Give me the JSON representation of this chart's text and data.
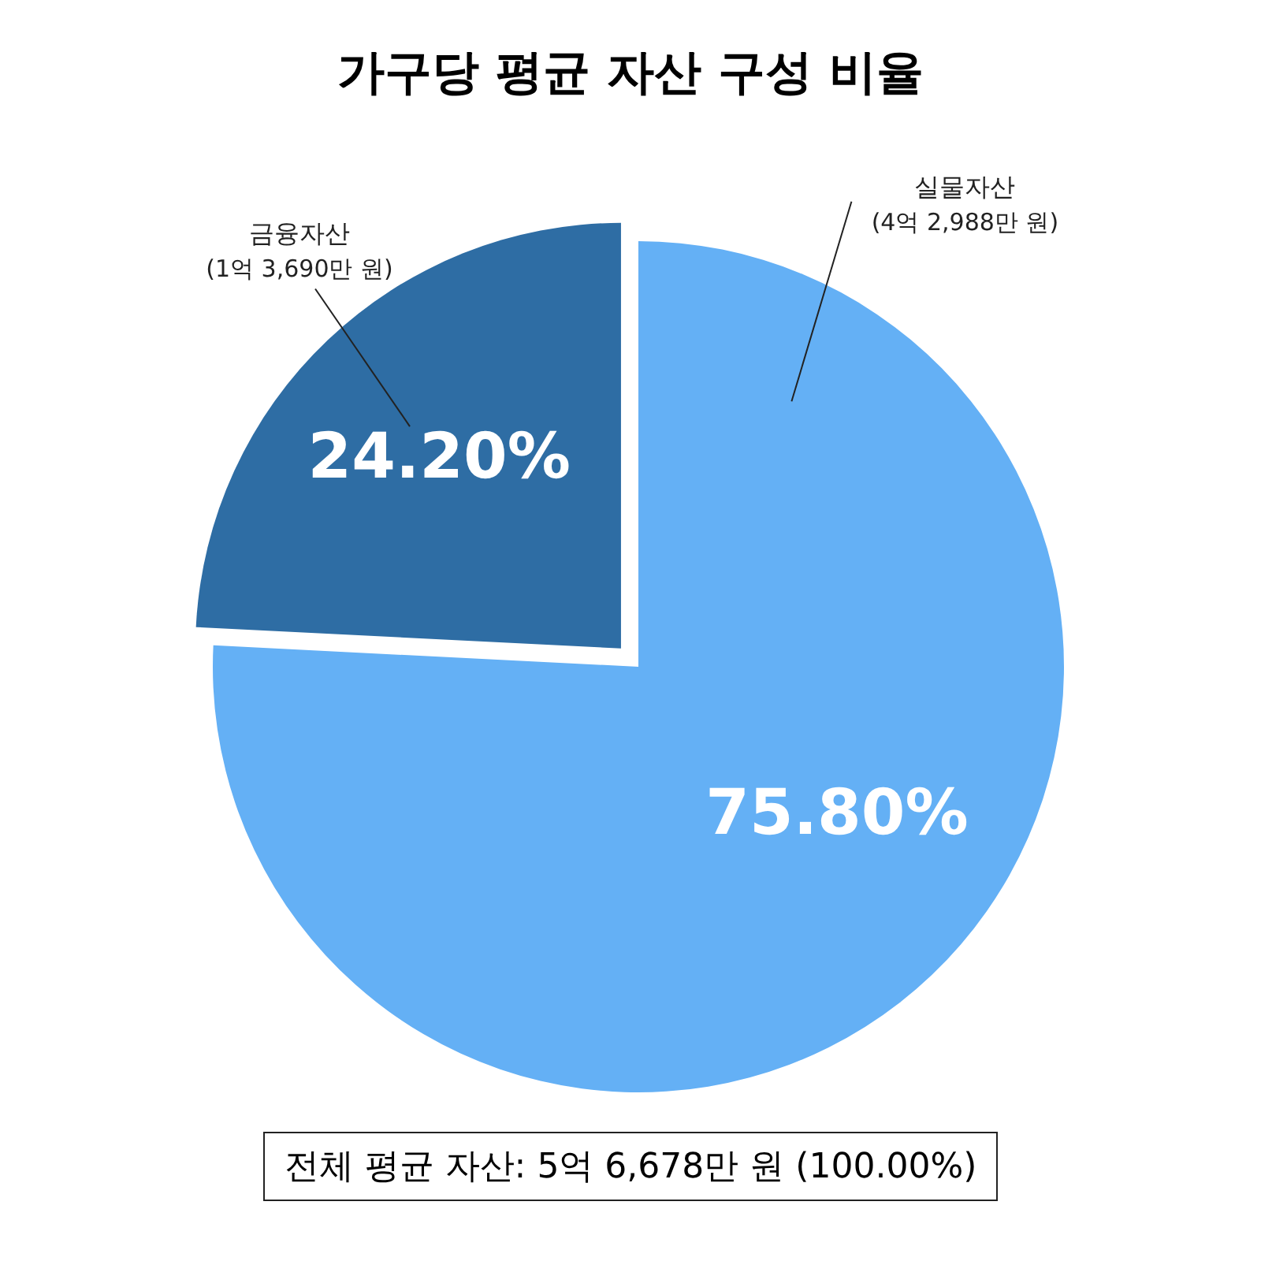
{
  "chart_data": {
    "type": "pie",
    "title": "가구당 평균 자산 구성 비율",
    "categories": [
      "실물자산",
      "금융자산"
    ],
    "values": [
      75.8,
      24.2
    ],
    "colors": [
      "#64b0f5",
      "#2e6da4"
    ],
    "value_labels": [
      "75.80%",
      "24.20%"
    ],
    "annotations": [
      "(4억 2,988만 원)",
      "(1억 3,690만 원)",
      "전체 평균 자산: 5억 6,678만 원 (100.00%)"
    ]
  }
}
